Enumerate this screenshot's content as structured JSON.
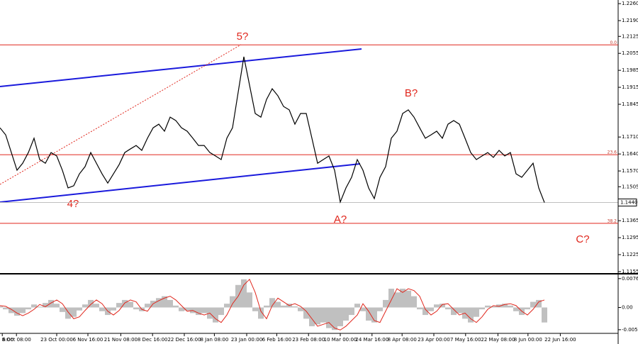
{
  "chart_data": [
    {
      "type": "line",
      "ylim": [
        1.1149,
        1.2275
      ],
      "yticks": [
        {
          "value": 1.226,
          "label": "1.2260"
        },
        {
          "value": 1.219,
          "label": "1.2190"
        },
        {
          "value": 1.2125,
          "label": "1.2125"
        },
        {
          "value": 1.2055,
          "label": "1.2055"
        },
        {
          "value": 1.1985,
          "label": "1.1985"
        },
        {
          "value": 1.1915,
          "label": "1.1915"
        },
        {
          "value": 1.1845,
          "label": "1.1845"
        },
        {
          "value": 1.171,
          "label": "1.1710"
        },
        {
          "value": 1.164,
          "label": "1.1640"
        },
        {
          "value": 1.157,
          "label": "1.1570"
        },
        {
          "value": 1.1505,
          "label": "1.1505"
        },
        {
          "value": 1.1365,
          "label": "1.1365"
        },
        {
          "value": 1.1295,
          "label": "1.1295"
        },
        {
          "value": 1.1225,
          "label": "1.1225"
        },
        {
          "value": 1.1155,
          "label": "1.1155"
        }
      ],
      "xlim": [
        0,
        109
      ],
      "xticks": [
        {
          "value": 0.4,
          "label": "6:00"
        },
        {
          "value": 2.9,
          "label": "8 Oct 08:00"
        },
        {
          "value": 10,
          "label": "23 Oct 00:00"
        },
        {
          "value": 15.5,
          "label": "6 Nov 16:00"
        },
        {
          "value": 21.3,
          "label": "21 Nov 08:00"
        },
        {
          "value": 26.9,
          "label": "8 Dec 16:00"
        },
        {
          "value": 32.5,
          "label": "22 Dec 16:00"
        },
        {
          "value": 37.8,
          "label": "8 Jan 08:00"
        },
        {
          "value": 43.5,
          "label": "23 Jan 00:00"
        },
        {
          "value": 48.8,
          "label": "6 Feb 16:00"
        },
        {
          "value": 54.4,
          "label": "23 Feb 08:00"
        },
        {
          "value": 60,
          "label": "10 Mar 00:00"
        },
        {
          "value": 65.6,
          "label": "24 Mar 16:00"
        },
        {
          "value": 70.9,
          "label": "8 Apr 08:00"
        },
        {
          "value": 76.5,
          "label": "23 Apr 00:00"
        },
        {
          "value": 82.1,
          "label": "7 May 16:00"
        },
        {
          "value": 87.8,
          "label": "22 May 08:00"
        },
        {
          "value": 93.1,
          "label": "8 Jun 00:00"
        },
        {
          "value": 98.8,
          "label": "22 Jun 16:00"
        }
      ],
      "current_price": {
        "value": 1.144,
        "label": "1.1440"
      },
      "levels": [
        {
          "value": 1.209,
          "label": "0.0"
        },
        {
          "value": 1.1637,
          "label": "23.6"
        },
        {
          "value": 1.1354,
          "label": "38.2"
        }
      ],
      "annotations": [
        "5?",
        "4?",
        "A?",
        "B?",
        "C?"
      ],
      "series": [
        {
          "color": "#000000",
          "values": [
            1.1748,
            1.1719,
            1.1646,
            1.1573,
            1.1602,
            1.1646,
            1.1705,
            1.1617,
            1.1602,
            1.1646,
            1.1632,
            1.1573,
            1.15,
            1.1509,
            1.1558,
            1.1588,
            1.1646,
            1.1602,
            1.1558,
            1.152,
            1.1558,
            1.1596,
            1.1646,
            1.1661,
            1.1675,
            1.1655,
            1.1705,
            1.1748,
            1.1763,
            1.1734,
            1.1792,
            1.1778,
            1.1748,
            1.1734,
            1.1705,
            1.1675,
            1.1675,
            1.1646,
            1.1632,
            1.1617,
            1.1705,
            1.1748,
            1.1895,
            1.2041,
            1.1924,
            1.1807,
            1.1792,
            1.1865,
            1.1909,
            1.188,
            1.1836,
            1.1822,
            1.1763,
            1.1807,
            1.1807,
            1.1705,
            1.1602,
            1.1617,
            1.1632,
            1.1573,
            1.1442,
            1.15,
            1.1544,
            1.1617,
            1.1573,
            1.15,
            1.1456,
            1.1544,
            1.1588,
            1.1705,
            1.1734,
            1.1807,
            1.1822,
            1.1792,
            1.1748,
            1.1705,
            1.1719,
            1.1734,
            1.1705,
            1.1763,
            1.1778,
            1.1763,
            1.1705,
            1.1646,
            1.1617,
            1.1632,
            1.1646,
            1.1626,
            1.1655,
            1.1632,
            1.1646,
            1.1558,
            1.1544,
            1.1573,
            1.1602,
            1.15,
            1.144
          ]
        }
      ]
    },
    {
      "type": "bar",
      "ylim": [
        -0.0069,
        0.0086
      ],
      "yticks": [
        {
          "value": 0.00769,
          "label": "0.00769"
        },
        {
          "value": 0,
          "label": "0.00"
        },
        {
          "value": -0.00593,
          "label": "-0.00593"
        }
      ],
      "series": [
        {
          "color": "#c0c0c0",
          "values": [
            0.0003,
            -0.0005,
            -0.0015,
            -0.0022,
            -0.0015,
            -0.0005,
            0.0008,
            0.0002,
            0.0012,
            0.002,
            0.001,
            -0.0012,
            -0.003,
            -0.0025,
            -0.0008,
            0.0008,
            0.002,
            0.001,
            -0.001,
            -0.002,
            -0.0008,
            0.0012,
            0.002,
            0.0015,
            -0.0005,
            -0.001,
            0.001,
            0.0018,
            0.0025,
            0.003,
            0.002,
            0.0005,
            -0.001,
            -0.0008,
            -0.0015,
            -0.002,
            -0.0015,
            -0.003,
            -0.004,
            -0.002,
            0.001,
            0.003,
            0.006,
            0.0075,
            0.004,
            -0.001,
            -0.003,
            0.0005,
            0.0025,
            0.0015,
            0.0005,
            0.001,
            0.0003,
            -0.001,
            -0.003,
            -0.005,
            -0.0045,
            -0.004,
            -0.0055,
            -0.006,
            -0.005,
            -0.0035,
            -0.002,
            0.001,
            -0.001,
            -0.0035,
            -0.004,
            -0.001,
            0.002,
            0.005,
            0.004,
            0.005,
            0.0045,
            0.003,
            -0.0005,
            -0.002,
            -0.001,
            0.0008,
            0.001,
            -0.0005,
            -0.002,
            -0.0015,
            -0.003,
            -0.004,
            -0.0025,
            -0.0005,
            0.0005,
            0.0003,
            0.0008,
            0.001,
            0.0005,
            -0.001,
            -0.002,
            -0.0005,
            0.0015,
            0.002,
            -0.004
          ]
        },
        {
          "color": "#e0261c",
          "values": [
            0.0005,
            0.0003,
            -0.0005,
            -0.0015,
            -0.0022,
            -0.0015,
            -0.0005,
            0.0008,
            0.0002,
            0.0012,
            0.002,
            0.001,
            -0.0012,
            -0.003,
            -0.0025,
            -0.0008,
            0.0008,
            0.002,
            0.001,
            -0.001,
            -0.002,
            -0.0008,
            0.0012,
            0.002,
            0.0015,
            -0.0005,
            -0.001,
            0.001,
            0.0018,
            0.0025,
            0.003,
            0.002,
            0.0005,
            -0.001,
            -0.0008,
            -0.0015,
            -0.002,
            -0.0015,
            -0.003,
            -0.004,
            -0.002,
            0.001,
            0.003,
            0.006,
            0.0075,
            0.004,
            -0.001,
            -0.003,
            0.0005,
            0.0025,
            0.0015,
            0.0005,
            0.001,
            0.0003,
            -0.001,
            -0.003,
            -0.005,
            -0.0045,
            -0.004,
            -0.0055,
            -0.006,
            -0.005,
            -0.0035,
            -0.002,
            0.001,
            -0.001,
            -0.0035,
            -0.004,
            -0.001,
            0.002,
            0.005,
            0.004,
            0.005,
            0.0045,
            0.003,
            -0.0005,
            -0.002,
            -0.001,
            0.0008,
            0.001,
            -0.0005,
            -0.002,
            -0.0015,
            -0.003,
            -0.004,
            -0.0025,
            -0.0005,
            0.0005,
            0.0003,
            0.0008,
            0.001,
            0.0005,
            -0.001,
            -0.002,
            -0.0005,
            0.0015,
            0.002
          ]
        }
      ]
    }
  ]
}
